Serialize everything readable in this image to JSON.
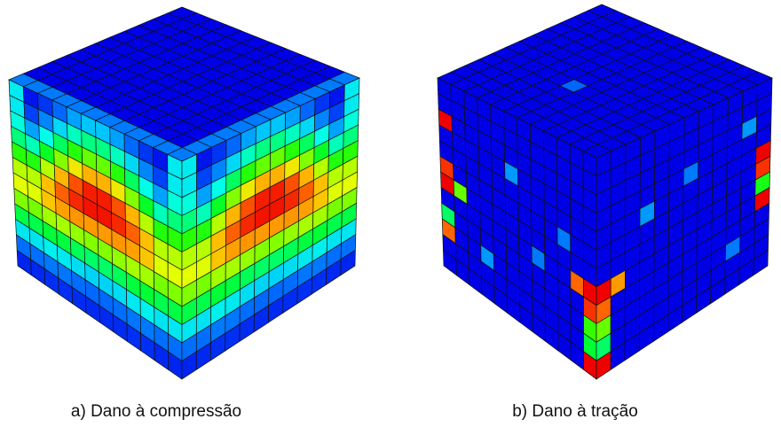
{
  "figures": [
    {
      "caption": "a) Dano à compressão"
    },
    {
      "caption": "b) Dano à tração"
    }
  ]
}
